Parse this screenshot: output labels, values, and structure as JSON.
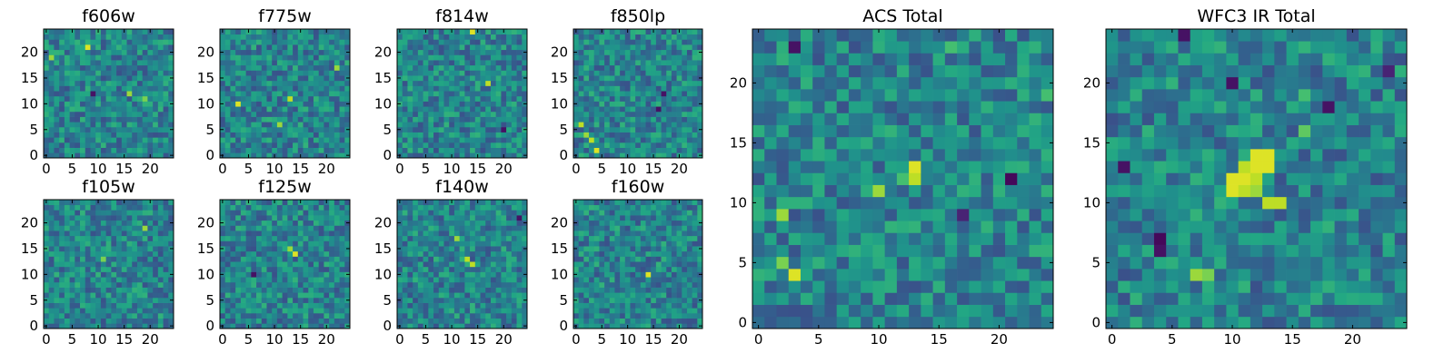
{
  "colormap": "viridis",
  "chart_data": [
    {
      "type": "heatmap",
      "title": "f606w",
      "grid_size": 25,
      "xlim": [
        0,
        24
      ],
      "ylim": [
        0,
        24
      ],
      "x_ticks": [
        "0",
        "5",
        "10",
        "15",
        "20"
      ],
      "y_ticks": [
        "0",
        "5",
        "10",
        "15",
        "20"
      ],
      "hotspots": [
        {
          "x": 8,
          "y": 21,
          "value": 0.95
        },
        {
          "x": 1,
          "y": 19,
          "value": 0.85
        },
        {
          "x": 16,
          "y": 12,
          "value": 0.85
        },
        {
          "x": 19,
          "y": 11,
          "value": 0.8
        }
      ],
      "coldspots": [
        {
          "x": 9,
          "y": 12,
          "value": 0.05
        }
      ],
      "seed": 11
    },
    {
      "type": "heatmap",
      "title": "f775w",
      "grid_size": 25,
      "xlim": [
        0,
        24
      ],
      "ylim": [
        0,
        24
      ],
      "x_ticks": [
        "0",
        "5",
        "10",
        "15",
        "20"
      ],
      "y_ticks": [
        "0",
        "5",
        "10",
        "15",
        "20"
      ],
      "hotspots": [
        {
          "x": 3,
          "y": 10,
          "value": 0.95
        },
        {
          "x": 13,
          "y": 11,
          "value": 0.9
        },
        {
          "x": 22,
          "y": 17,
          "value": 0.85
        },
        {
          "x": 11,
          "y": 6,
          "value": 0.85
        }
      ],
      "coldspots": [],
      "seed": 23
    },
    {
      "type": "heatmap",
      "title": "f814w",
      "grid_size": 25,
      "xlim": [
        0,
        24
      ],
      "ylim": [
        0,
        24
      ],
      "x_ticks": [
        "0",
        "5",
        "10",
        "15",
        "20"
      ],
      "y_ticks": [
        "0",
        "5",
        "10",
        "15",
        "20"
      ],
      "hotspots": [
        {
          "x": 14,
          "y": 24,
          "value": 0.95
        },
        {
          "x": 17,
          "y": 14,
          "value": 0.9
        }
      ],
      "coldspots": [
        {
          "x": 20,
          "y": 5,
          "value": 0.05
        }
      ],
      "seed": 37
    },
    {
      "type": "heatmap",
      "title": "f850lp",
      "grid_size": 25,
      "xlim": [
        0,
        24
      ],
      "ylim": [
        0,
        24
      ],
      "x_ticks": [
        "0",
        "5",
        "10",
        "15",
        "20"
      ],
      "y_ticks": [
        "0",
        "5",
        "10",
        "15",
        "20"
      ],
      "hotspots": [
        {
          "x": 1,
          "y": 6,
          "value": 0.9
        },
        {
          "x": 2,
          "y": 4,
          "value": 0.85
        },
        {
          "x": 3,
          "y": 3,
          "value": 0.9
        },
        {
          "x": 4,
          "y": 1,
          "value": 0.95
        }
      ],
      "coldspots": [
        {
          "x": 17,
          "y": 12,
          "value": 0.05
        },
        {
          "x": 16,
          "y": 9,
          "value": 0.05
        }
      ],
      "seed": 41
    },
    {
      "type": "heatmap",
      "title": "f105w",
      "grid_size": 25,
      "xlim": [
        0,
        24
      ],
      "ylim": [
        0,
        24
      ],
      "x_ticks": [
        "0",
        "5",
        "10",
        "15",
        "20"
      ],
      "y_ticks": [
        "0",
        "5",
        "10",
        "15",
        "20"
      ],
      "hotspots": [
        {
          "x": 19,
          "y": 19,
          "value": 0.85
        },
        {
          "x": 11,
          "y": 13,
          "value": 0.8
        }
      ],
      "coldspots": [],
      "seed": 53
    },
    {
      "type": "heatmap",
      "title": "f125w",
      "grid_size": 25,
      "xlim": [
        0,
        24
      ],
      "ylim": [
        0,
        24
      ],
      "x_ticks": [
        "0",
        "5",
        "10",
        "15",
        "20"
      ],
      "y_ticks": [
        "0",
        "5",
        "10",
        "15",
        "20"
      ],
      "hotspots": [
        {
          "x": 14,
          "y": 14,
          "value": 0.95
        },
        {
          "x": 13,
          "y": 15,
          "value": 0.85
        }
      ],
      "coldspots": [
        {
          "x": 6,
          "y": 10,
          "value": 0.05
        }
      ],
      "seed": 67
    },
    {
      "type": "heatmap",
      "title": "f140w",
      "grid_size": 25,
      "xlim": [
        0,
        24
      ],
      "ylim": [
        0,
        24
      ],
      "x_ticks": [
        "0",
        "5",
        "10",
        "15",
        "20"
      ],
      "y_ticks": [
        "0",
        "5",
        "10",
        "15",
        "20"
      ],
      "hotspots": [
        {
          "x": 13,
          "y": 13,
          "value": 0.9
        },
        {
          "x": 14,
          "y": 12,
          "value": 0.9
        },
        {
          "x": 11,
          "y": 17,
          "value": 0.85
        }
      ],
      "coldspots": [
        {
          "x": 23,
          "y": 21,
          "value": 0.05
        }
      ],
      "seed": 79
    },
    {
      "type": "heatmap",
      "title": "f160w",
      "grid_size": 25,
      "xlim": [
        0,
        24
      ],
      "ylim": [
        0,
        24
      ],
      "x_ticks": [
        "0",
        "5",
        "10",
        "15",
        "20"
      ],
      "y_ticks": [
        "0",
        "5",
        "10",
        "15",
        "20"
      ],
      "hotspots": [
        {
          "x": 14,
          "y": 10,
          "value": 0.95
        }
      ],
      "coldspots": [],
      "seed": 83
    },
    {
      "type": "heatmap",
      "title": "ACS Total",
      "grid_size": 25,
      "xlim": [
        0,
        24
      ],
      "ylim": [
        0,
        24
      ],
      "x_ticks": [
        "0",
        "5",
        "10",
        "15",
        "20"
      ],
      "y_ticks": [
        "0",
        "5",
        "10",
        "15",
        "20"
      ],
      "hotspots": [
        {
          "x": 13,
          "y": 13,
          "value": 0.95
        },
        {
          "x": 13,
          "y": 12,
          "value": 0.9
        },
        {
          "x": 10,
          "y": 11,
          "value": 0.85
        },
        {
          "x": 2,
          "y": 9,
          "value": 0.85
        },
        {
          "x": 3,
          "y": 4,
          "value": 0.95
        },
        {
          "x": 2,
          "y": 5,
          "value": 0.8
        },
        {
          "x": 16,
          "y": 23,
          "value": 0.7
        },
        {
          "x": 24,
          "y": 19,
          "value": 0.7
        },
        {
          "x": 12,
          "y": 12,
          "value": 0.7
        }
      ],
      "coldspots": [
        {
          "x": 3,
          "y": 23,
          "value": 0.05
        },
        {
          "x": 21,
          "y": 12,
          "value": 0.02
        },
        {
          "x": 17,
          "y": 9,
          "value": 0.1
        }
      ],
      "seed": 97
    },
    {
      "type": "heatmap",
      "title": "WFC3 IR Total",
      "grid_size": 25,
      "xlim": [
        0,
        24
      ],
      "ylim": [
        0,
        24
      ],
      "x_ticks": [
        "0",
        "5",
        "10",
        "15",
        "20"
      ],
      "y_ticks": [
        "0",
        "5",
        "10",
        "15",
        "20"
      ],
      "hotspots": [
        {
          "x": 12,
          "y": 14,
          "value": 0.95
        },
        {
          "x": 13,
          "y": 14,
          "value": 0.95
        },
        {
          "x": 11,
          "y": 13,
          "value": 0.9
        },
        {
          "x": 12,
          "y": 13,
          "value": 0.95
        },
        {
          "x": 13,
          "y": 13,
          "value": 0.95
        },
        {
          "x": 10,
          "y": 12,
          "value": 0.95
        },
        {
          "x": 11,
          "y": 12,
          "value": 0.95
        },
        {
          "x": 12,
          "y": 12,
          "value": 0.9
        },
        {
          "x": 10,
          "y": 11,
          "value": 0.95
        },
        {
          "x": 11,
          "y": 11,
          "value": 0.9
        },
        {
          "x": 12,
          "y": 11,
          "value": 0.85
        },
        {
          "x": 13,
          "y": 10,
          "value": 0.9
        },
        {
          "x": 14,
          "y": 10,
          "value": 0.9
        },
        {
          "x": 7,
          "y": 4,
          "value": 0.85
        },
        {
          "x": 8,
          "y": 4,
          "value": 0.8
        },
        {
          "x": 16,
          "y": 19,
          "value": 0.7
        },
        {
          "x": 16,
          "y": 16,
          "value": 0.75
        }
      ],
      "coldspots": [
        {
          "x": 1,
          "y": 13,
          "value": 0.05
        },
        {
          "x": 4,
          "y": 7,
          "value": 0.02
        },
        {
          "x": 4,
          "y": 6,
          "value": 0.05
        },
        {
          "x": 10,
          "y": 20,
          "value": 0.05
        },
        {
          "x": 18,
          "y": 18,
          "value": 0.05
        },
        {
          "x": 23,
          "y": 21,
          "value": 0.1
        },
        {
          "x": 6,
          "y": 24,
          "value": 0.05
        }
      ],
      "seed": 101
    }
  ]
}
